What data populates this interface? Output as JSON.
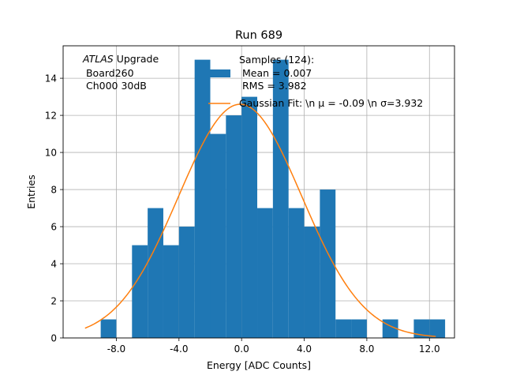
{
  "chart_data": {
    "type": "bar",
    "title": "Run 689",
    "xlabel": "Energy [ADC Counts]",
    "ylabel": "Entries",
    "xlim": [
      -11.4,
      13.6
    ],
    "ylim": [
      0,
      15.75
    ],
    "grid": true,
    "xticks": [
      -8,
      -4,
      0,
      4,
      8,
      12
    ],
    "xtick_labels": [
      "-8.0",
      "-4.0",
      "0.0",
      "4.0",
      "8.0",
      "12.0"
    ],
    "yticks": [
      0,
      2,
      4,
      6,
      8,
      10,
      12,
      14
    ],
    "ytick_labels": [
      "0",
      "2",
      "4",
      "6",
      "8",
      "10",
      "12",
      "14"
    ],
    "bin_edges": [
      -9.0,
      -8.0,
      -7.0,
      -6.0,
      -5.0,
      -4.0,
      -3.0,
      -2.0,
      -1.0,
      0.0,
      1.0,
      2.0,
      3.0,
      4.0,
      5.0,
      6.0,
      7.0,
      8.0,
      9.0,
      10.0,
      11.0,
      12.0,
      13.0
    ],
    "counts": [
      1,
      0,
      5,
      7,
      5,
      6,
      15,
      11,
      12,
      13,
      7,
      15,
      7,
      6,
      8,
      1,
      1,
      0,
      1,
      0,
      1,
      1
    ],
    "histogram_color": "#1f77b4",
    "fit": {
      "type": "gaussian",
      "mu": -0.09,
      "sigma": 3.932,
      "amplitude": 12.6,
      "x_range": [
        -10.0,
        12.4
      ],
      "color": "#ff7f0e"
    },
    "annotation": {
      "italic": "ATLAS",
      "rest": " Upgrade",
      "line2": " Board260",
      "line3": " Ch000 30dB"
    },
    "legend": {
      "placement": "top-right",
      "entries": [
        {
          "kind": "patch",
          "lines": [
            "Samples (124):",
            " Mean = 0.007",
            " RMS = 3.982"
          ]
        },
        {
          "kind": "line",
          "text": "Gaussian Fit: \\n μ = -0.09 \\n σ=3.932"
        }
      ]
    }
  }
}
